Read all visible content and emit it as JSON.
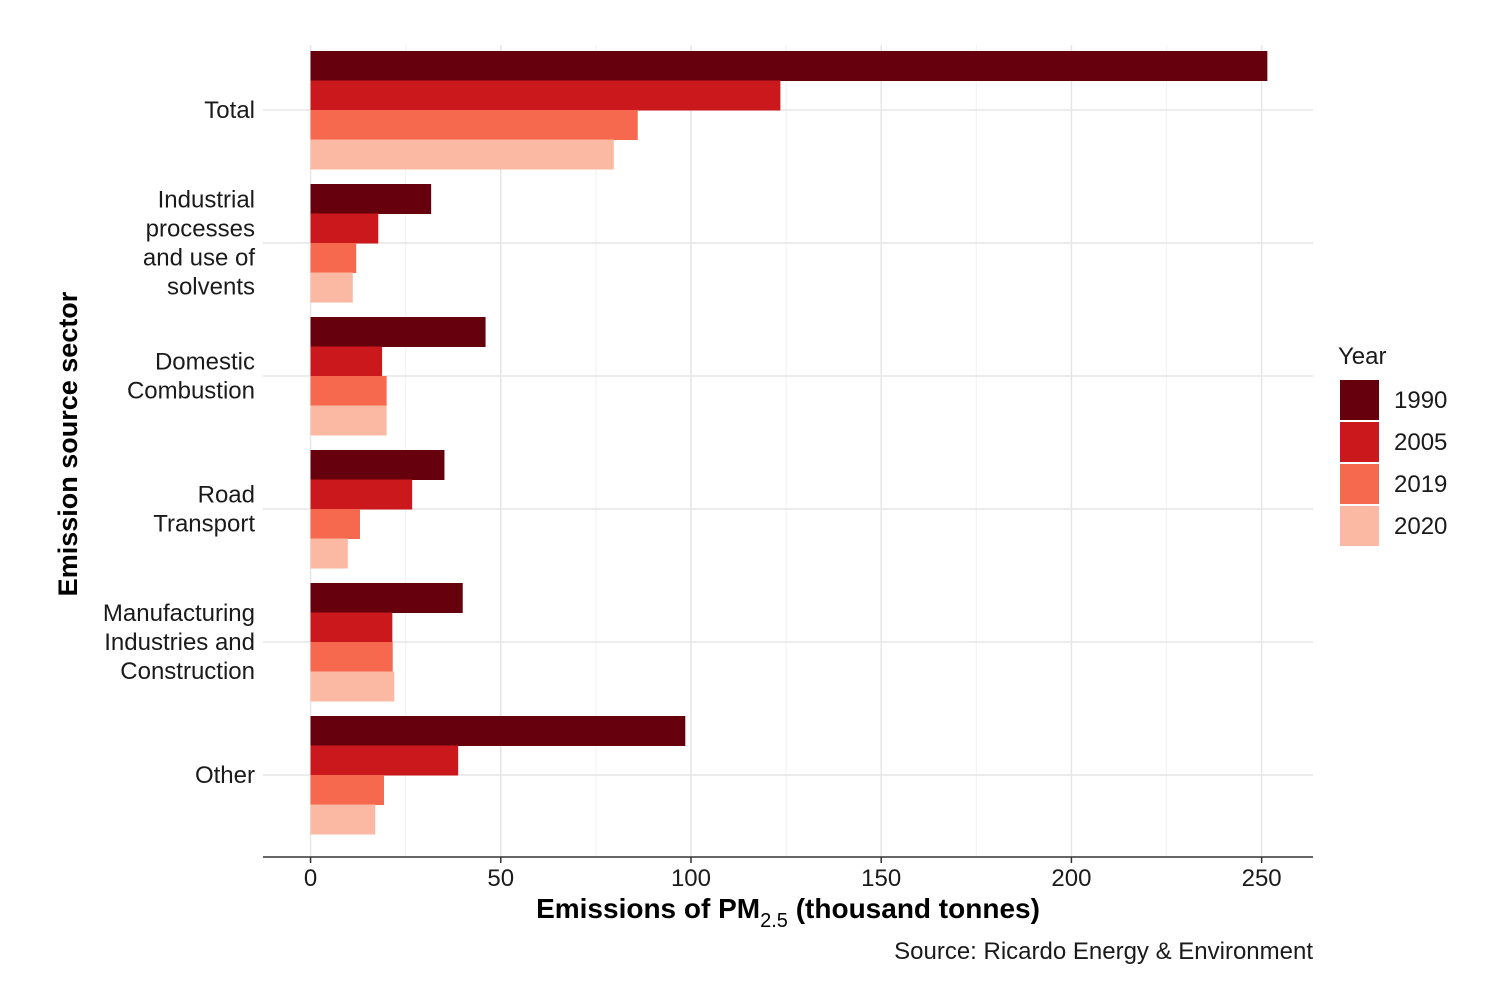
{
  "chart_data": {
    "type": "bar",
    "orientation": "horizontal",
    "categories": [
      "Total",
      "Industrial processes and use of solvents",
      "Domestic Combustion",
      "Road Transport",
      "Manufacturing Industries and Construction",
      "Other"
    ],
    "category_label_lines": [
      [
        "Total"
      ],
      [
        "Industrial",
        "processes",
        "and use of",
        "solvents"
      ],
      [
        "Domestic",
        "Combustion"
      ],
      [
        "Road",
        "Transport"
      ],
      [
        "Manufacturing",
        "Industries and",
        "Construction"
      ],
      [
        "Other"
      ]
    ],
    "series": [
      {
        "name": "1990",
        "color": "#67000d",
        "values": [
          251.5,
          31.7,
          46.0,
          35.2,
          40.0,
          98.5
        ]
      },
      {
        "name": "2005",
        "color": "#cb181d",
        "values": [
          123.5,
          17.8,
          18.8,
          26.7,
          21.5,
          38.8
        ]
      },
      {
        "name": "2019",
        "color": "#f6694f",
        "values": [
          86.0,
          12.0,
          20.0,
          13.0,
          21.6,
          19.3
        ]
      },
      {
        "name": "2020",
        "color": "#fbb8a2",
        "values": [
          79.7,
          11.1,
          20.0,
          9.8,
          22.0,
          17.0
        ]
      }
    ],
    "xlabel_main": "Emissions of PM",
    "xlabel_sub": "2.5",
    "xlabel_tail": " (thousand tonnes)",
    "ylabel": "Emission source sector",
    "xlim": [
      -12.5,
      263.5
    ],
    "xticks": [
      0,
      50,
      100,
      150,
      200,
      250
    ],
    "legend_title": "Year",
    "legend_position": "right",
    "grid": true,
    "source": "Source: Ricardo Energy & Environment"
  }
}
